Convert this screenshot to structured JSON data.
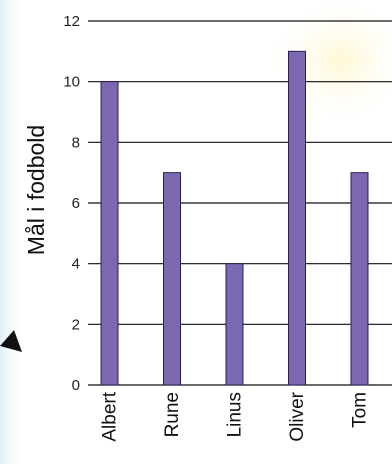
{
  "chart_data": {
    "type": "bar",
    "title": "",
    "xlabel": "",
    "ylabel": "Mål i fodbold",
    "categories": [
      "Albert",
      "Rune",
      "Linus",
      "Oliver",
      "Tom"
    ],
    "values": [
      10,
      7,
      4,
      11,
      7
    ],
    "ylim": [
      0,
      12
    ],
    "yticks": [
      0,
      2,
      4,
      6,
      8,
      10,
      12
    ],
    "grid": true,
    "legend": "none",
    "colors": {
      "bar": "#7b68b0",
      "bar_edge": "#2a2050",
      "gridline": "#111111",
      "background": "#ffffff",
      "side_tint": "#e9f4f9",
      "corner_glow": "#fffbe6"
    },
    "decorations": {
      "arrow": "arrow-icon"
    }
  }
}
